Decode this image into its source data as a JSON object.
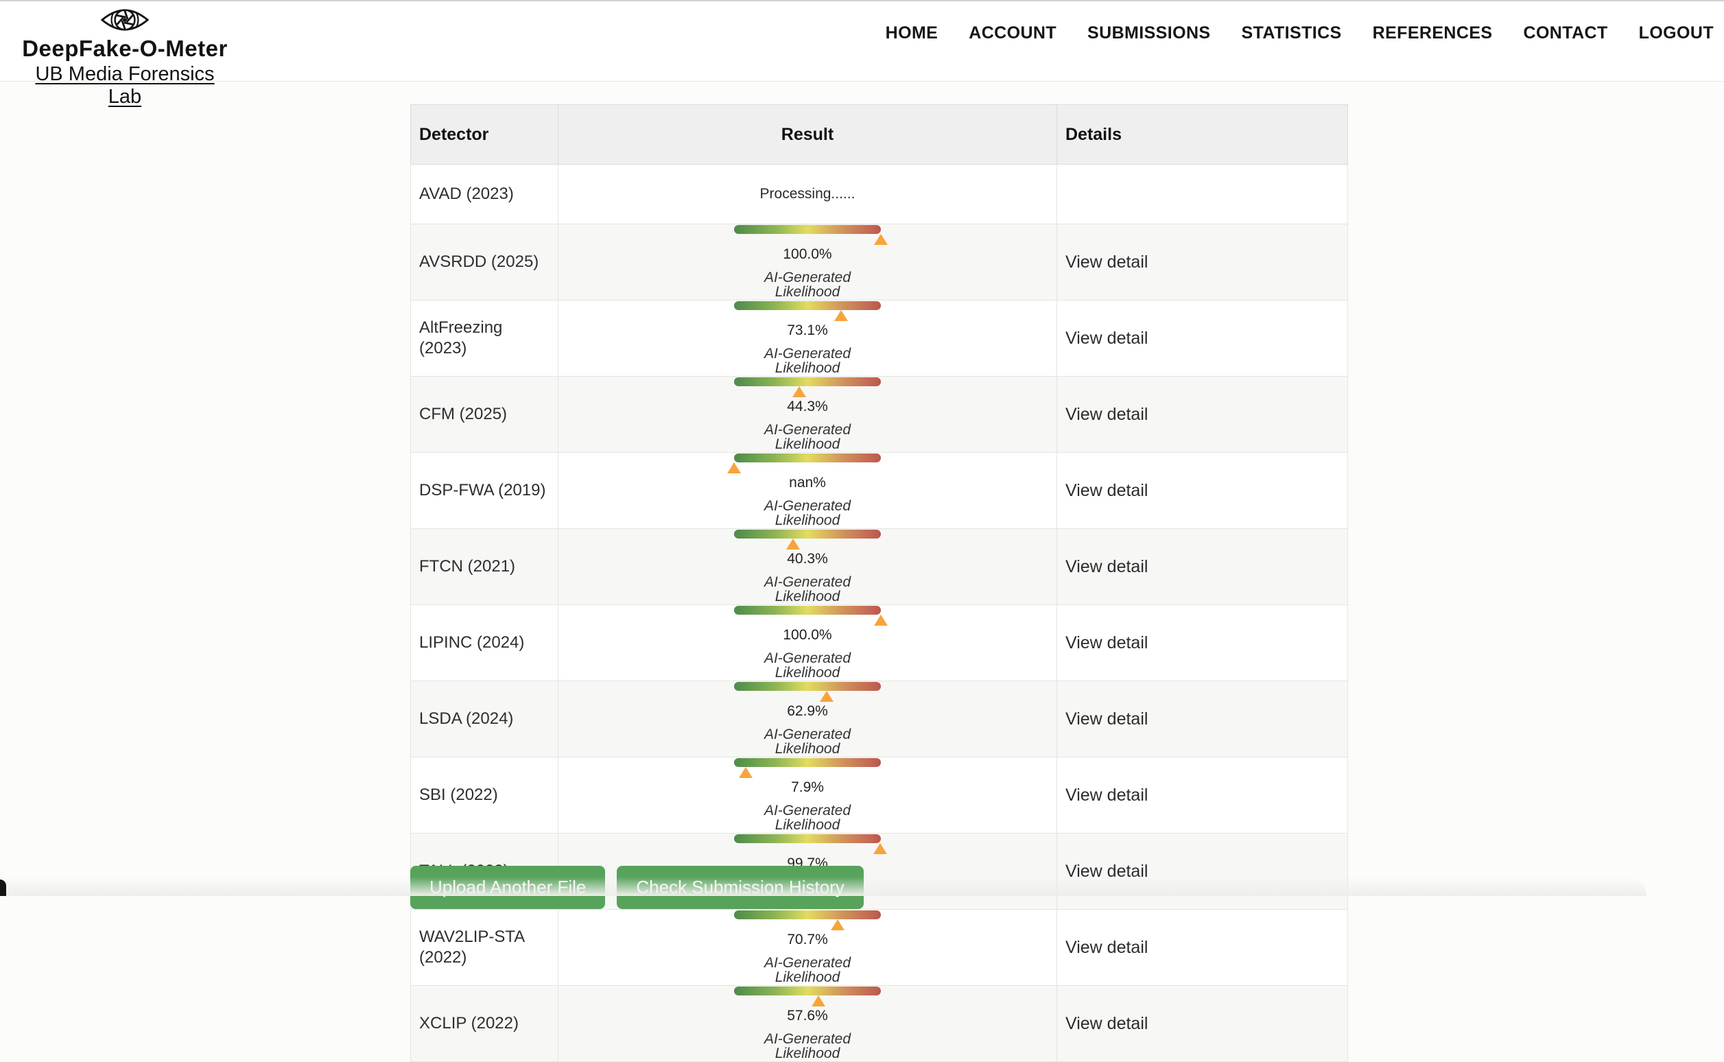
{
  "brand": {
    "title": "DeepFake-O-Meter",
    "subtitle": "UB Media Forensics Lab"
  },
  "nav": {
    "items": [
      {
        "id": "home",
        "label": "HOME"
      },
      {
        "id": "account",
        "label": "ACCOUNT"
      },
      {
        "id": "submissions",
        "label": "SUBMISSIONS"
      },
      {
        "id": "statistics",
        "label": "STATISTICS"
      },
      {
        "id": "references",
        "label": "REFERENCES"
      },
      {
        "id": "contact",
        "label": "CONTACT"
      },
      {
        "id": "logout",
        "label": "LOGOUT"
      }
    ]
  },
  "table": {
    "headers": {
      "detector": "Detector",
      "result": "Result",
      "details": "Details"
    },
    "caption": "AI-Generated Likelihood",
    "rows": [
      {
        "detector": "AVAD (2023)",
        "status": "processing",
        "result": "Processing......",
        "marker_pct": null,
        "details": ""
      },
      {
        "detector": "AVSRDD (2025)",
        "status": "done",
        "result": "100.0%",
        "marker_pct": 100,
        "details": "View detail"
      },
      {
        "detector": "AltFreezing (2023)",
        "status": "done",
        "result": "73.1%",
        "marker_pct": 73.1,
        "details": "View detail"
      },
      {
        "detector": "CFM (2025)",
        "status": "done",
        "result": "44.3%",
        "marker_pct": 44.3,
        "details": "View detail"
      },
      {
        "detector": "DSP-FWA (2019)",
        "status": "done",
        "result": "nan%",
        "marker_pct": 0,
        "details": "View detail"
      },
      {
        "detector": "FTCN (2021)",
        "status": "done",
        "result": "40.3%",
        "marker_pct": 40.3,
        "details": "View detail"
      },
      {
        "detector": "LIPINC (2024)",
        "status": "done",
        "result": "100.0%",
        "marker_pct": 100,
        "details": "View detail"
      },
      {
        "detector": "LSDA (2024)",
        "status": "done",
        "result": "62.9%",
        "marker_pct": 62.9,
        "details": "View detail"
      },
      {
        "detector": "SBI (2022)",
        "status": "done",
        "result": "7.9%",
        "marker_pct": 7.9,
        "details": "View detail"
      },
      {
        "detector": "TALL (2023)",
        "status": "done",
        "result": "99.7%",
        "marker_pct": 99.7,
        "details": "View detail"
      },
      {
        "detector": "WAV2LIP-STA (2022)",
        "status": "done",
        "result": "70.7%",
        "marker_pct": 70.7,
        "details": "View detail"
      },
      {
        "detector": "XCLIP (2022)",
        "status": "done",
        "result": "57.6%",
        "marker_pct": 57.6,
        "details": "View detail"
      }
    ]
  },
  "actions": {
    "upload": "Upload Another File",
    "history": "Check Submission History"
  },
  "colors": {
    "button_green": "#57a35b",
    "marker_orange": "#f7a43c",
    "bar_gradient": [
      "#4c8b4a",
      "#e2dc5f",
      "#c05e52"
    ],
    "header_bg": "#efefef",
    "row_alt_bg": "#f7f7f6"
  }
}
